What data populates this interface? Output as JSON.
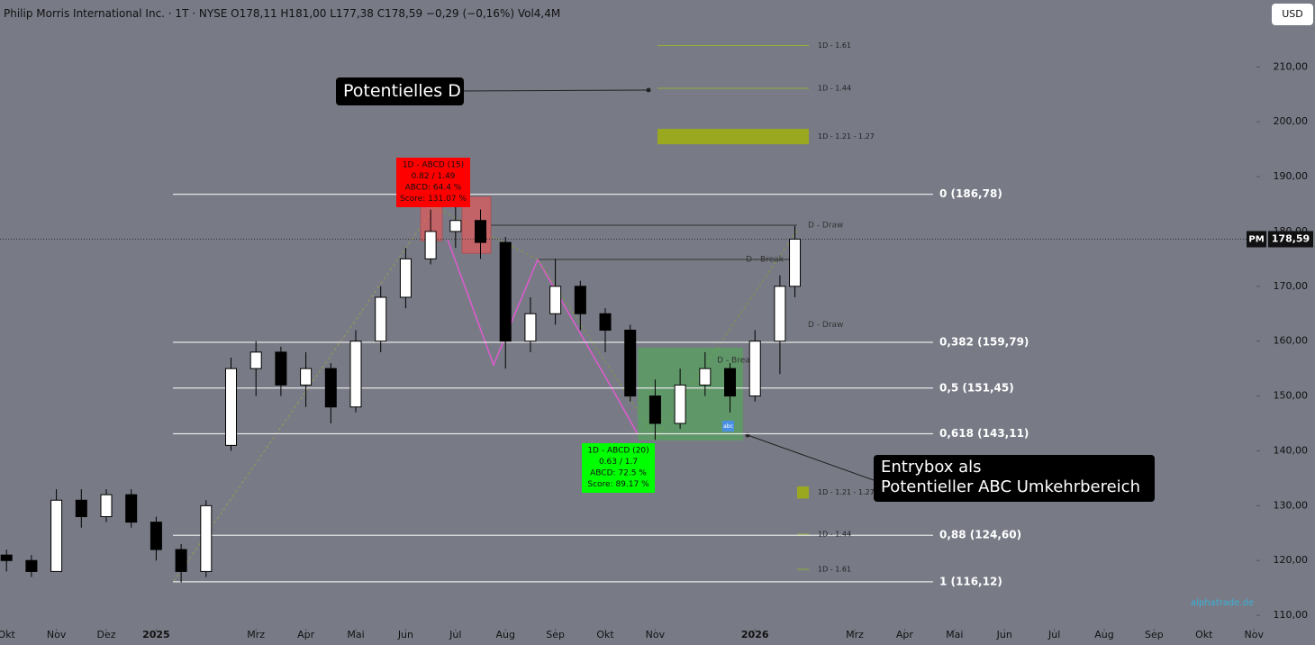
{
  "header": {
    "title": "Philip Morris International Inc. · 1T · NYSE  O178,11  H181,00  L177,38  C178,59  −0,29 (−0,16%)  Vol4,4M",
    "currency": "USD",
    "watermark": "alphatrade.de"
  },
  "chart_data": {
    "type": "candlestick",
    "x": [
      0,
      0.5,
      1,
      1.5,
      2,
      2.5,
      3,
      3.5,
      4,
      4.5,
      5,
      5.5,
      6,
      6.5,
      7,
      7.5,
      8,
      8.5,
      9,
      9.5,
      10,
      10.5,
      11,
      11.5,
      12,
      12.5,
      13,
      13.5,
      14,
      14.5,
      15,
      15.5,
      15.8
    ],
    "open": [
      121,
      120,
      118,
      131,
      128,
      132,
      127,
      122,
      118,
      141,
      155,
      158,
      152,
      155,
      148,
      160,
      168,
      175,
      180,
      182,
      178,
      160,
      165,
      170,
      165,
      162,
      150,
      145,
      152,
      155,
      150,
      160,
      170
    ],
    "high": [
      122,
      121,
      133,
      133,
      133,
      133,
      128,
      123,
      131,
      157,
      160,
      159,
      158,
      156,
      162,
      170,
      177,
      184,
      186,
      184,
      179,
      168,
      175,
      171,
      166,
      163,
      153,
      155,
      158,
      156,
      162,
      172,
      181
    ],
    "low": [
      118,
      117,
      118,
      126,
      127,
      126,
      120,
      116,
      117,
      140,
      150,
      150,
      148,
      145,
      147,
      158,
      166,
      174,
      177,
      175,
      155,
      158,
      163,
      162,
      158,
      149,
      142,
      144,
      150,
      147,
      149,
      154,
      168
    ],
    "close": [
      120,
      118,
      131,
      128,
      132,
      127,
      122,
      118,
      130,
      155,
      158,
      152,
      155,
      148,
      160,
      168,
      175,
      180,
      182,
      178,
      160,
      165,
      170,
      165,
      162,
      150,
      145,
      152,
      155,
      150,
      160,
      170,
      178.59
    ],
    "up_color": "#ffffff",
    "down_color": "#000000",
    "xlim": [
      -0.13,
      25.05
    ],
    "xticks": [
      {
        "value": 0,
        "label": "Okt"
      },
      {
        "value": 1,
        "label": "Nov"
      },
      {
        "value": 2,
        "label": "Dez"
      },
      {
        "value": 3,
        "label": "2025"
      },
      {
        "value": 5,
        "label": "Mrz"
      },
      {
        "value": 6,
        "label": "Apr"
      },
      {
        "value": 7,
        "label": "Mai"
      },
      {
        "value": 8,
        "label": "Jun"
      },
      {
        "value": 9,
        "label": "Jul"
      },
      {
        "value": 10,
        "label": "Aug"
      },
      {
        "value": 11,
        "label": "Sep"
      },
      {
        "value": 12,
        "label": "Okt"
      },
      {
        "value": 13,
        "label": "Nov"
      },
      {
        "value": 15,
        "label": "2026"
      },
      {
        "value": 17,
        "label": "Mrz"
      },
      {
        "value": 18,
        "label": "Apr"
      },
      {
        "value": 19,
        "label": "Mai"
      },
      {
        "value": 20,
        "label": "Jun"
      },
      {
        "value": 21,
        "label": "Jul"
      },
      {
        "value": 22,
        "label": "Aug"
      },
      {
        "value": 23,
        "label": "Sep"
      },
      {
        "value": 24,
        "label": "Okt"
      },
      {
        "value": 25,
        "label": "Nov"
      }
    ],
    "ylim": [
      104.6,
      222.2
    ],
    "yticks": [
      {
        "value": 110,
        "label": "110,00"
      },
      {
        "value": 120,
        "label": "120,00"
      },
      {
        "value": 130,
        "label": "130,00"
      },
      {
        "value": 140,
        "label": "140,00"
      },
      {
        "value": 150,
        "label": "150,00"
      },
      {
        "value": 160,
        "label": "160,00"
      },
      {
        "value": 170,
        "label": "170,00"
      },
      {
        "value": 180,
        "label": "180,00"
      },
      {
        "value": 190,
        "label": "190,00"
      },
      {
        "value": 200,
        "label": "200,00"
      },
      {
        "value": 210,
        "label": "210,00"
      }
    ],
    "last_price": {
      "name": "PM",
      "value": 178.59,
      "label": "178,59"
    },
    "fib_levels": [
      {
        "value": 186.78,
        "label": "0 (186,78)"
      },
      {
        "value": 159.79,
        "label": "0,382 (159,79)"
      },
      {
        "value": 151.45,
        "label": "0,5 (151,45)"
      },
      {
        "value": 143.11,
        "label": "0,618 (143,11)"
      },
      {
        "value": 124.6,
        "label": "0,88 (124,60)"
      },
      {
        "value": 116.12,
        "label": "1 (116,12)"
      }
    ],
    "targets_top": [
      {
        "value": 213.9,
        "label": "1D - 1.61"
      },
      {
        "value": 206.1,
        "label": "1D - 1.44"
      },
      {
        "low": 195.9,
        "high": 198.7,
        "label": "1D - 1.21 - 1.27"
      }
    ],
    "targets_bottom": [
      {
        "low": 131.3,
        "high": 133.5,
        "label": "1D - 1.21 - 1.27"
      },
      {
        "value": 124.8,
        "label": "1D - 1.44"
      },
      {
        "value": 118.4,
        "label": "1D - 1.61"
      }
    ],
    "entry_zone": {
      "low": 141.9,
      "high": 158.8,
      "badge": "abc"
    },
    "red_zones": [
      {
        "low": 178.3,
        "high": 186.3
      },
      {
        "low": 176.0,
        "high": 186.3
      }
    ],
    "level_labels": [
      {
        "value": 181.1,
        "label": "D - Draw"
      },
      {
        "value": 174.9,
        "label": "D - Break"
      },
      {
        "value": 163.0,
        "label": "D - Draw"
      },
      {
        "value": 156.5,
        "label": "D - Break"
      }
    ],
    "pattern_boxes": [
      {
        "color": "#ff0000",
        "lines": [
          "1D - ABCD  (15)",
          "0.82 / 1.49",
          "ABCD: 64.4 %",
          "Score: 131.07 %"
        ]
      },
      {
        "color": "#00ff00",
        "lines": [
          "1D - ABCD  (20)",
          "0.63 / 1.7",
          "ABCD: 72.5 %",
          "Score: 89.17 %"
        ]
      }
    ],
    "callouts": [
      {
        "lines": [
          "Potentielles D"
        ]
      },
      {
        "lines": [
          "Entrybox als",
          "Potentieller ABC Umkehrbereich"
        ]
      }
    ]
  }
}
